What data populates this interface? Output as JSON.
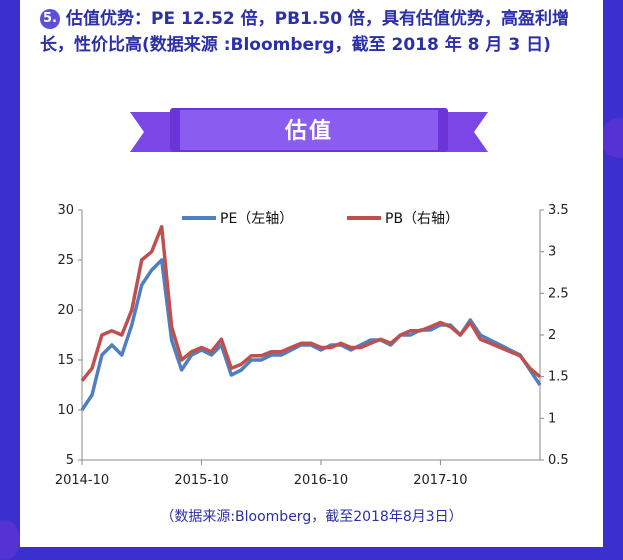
{
  "heading": {
    "number": "5.",
    "text": "估值优势：PE 12.52 倍，PB1.50 倍，具有估值优势，高盈利增长，性价比高(数据来源 :Bloomberg，截至 2018 年 8 月 3 日)"
  },
  "ribbon_title": "估值",
  "source_note": "（数据来源:Bloomberg，截至2018年8月3日）",
  "colors": {
    "pe": "#4f7fc0",
    "pb": "#c0504d",
    "background": "#3c2fd0",
    "accent": "#6a34d6"
  },
  "chart_data": {
    "type": "line",
    "x": [
      "2014-10",
      "2014-11",
      "2014-12",
      "2015-01",
      "2015-02",
      "2015-03",
      "2015-04",
      "2015-05",
      "2015-06",
      "2015-07",
      "2015-08",
      "2015-09",
      "2015-10",
      "2015-11",
      "2015-12",
      "2016-01",
      "2016-02",
      "2016-03",
      "2016-04",
      "2016-05",
      "2016-06",
      "2016-07",
      "2016-08",
      "2016-09",
      "2016-10",
      "2016-11",
      "2016-12",
      "2017-01",
      "2017-02",
      "2017-03",
      "2017-04",
      "2017-05",
      "2017-06",
      "2017-07",
      "2017-08",
      "2017-09",
      "2017-10",
      "2017-11",
      "2017-12",
      "2018-01",
      "2018-02",
      "2018-03",
      "2018-04",
      "2018-05",
      "2018-06",
      "2018-07",
      "2018-08"
    ],
    "x_ticks": [
      "2014-10",
      "2015-10",
      "2016-10",
      "2017-10"
    ],
    "series": [
      {
        "name": "PE（左轴）",
        "axis": "left",
        "values": [
          10.0,
          11.5,
          15.5,
          16.5,
          15.5,
          18.5,
          22.5,
          24.0,
          25.0,
          17.0,
          14.0,
          15.5,
          16.0,
          15.5,
          16.5,
          13.5,
          14.0,
          15.0,
          15.0,
          15.5,
          15.5,
          16.0,
          16.5,
          16.5,
          16.0,
          16.5,
          16.5,
          16.0,
          16.5,
          17.0,
          17.0,
          16.5,
          17.5,
          17.5,
          18.0,
          18.0,
          18.5,
          18.5,
          17.5,
          19.0,
          17.5,
          17.0,
          16.5,
          16.0,
          15.5,
          14.0,
          12.5
        ]
      },
      {
        "name": "PB（右轴）",
        "axis": "right",
        "values": [
          1.45,
          1.6,
          2.0,
          2.05,
          2.0,
          2.3,
          2.9,
          3.0,
          3.3,
          2.1,
          1.7,
          1.8,
          1.85,
          1.8,
          1.95,
          1.6,
          1.65,
          1.75,
          1.75,
          1.8,
          1.8,
          1.85,
          1.9,
          1.9,
          1.85,
          1.85,
          1.9,
          1.85,
          1.85,
          1.9,
          1.95,
          1.9,
          2.0,
          2.05,
          2.05,
          2.1,
          2.15,
          2.1,
          2.0,
          2.15,
          1.95,
          1.9,
          1.85,
          1.8,
          1.75,
          1.6,
          1.5
        ]
      }
    ],
    "ylim_left": [
      5,
      30
    ],
    "ylim_right": [
      0.5,
      3.5
    ],
    "yticks_left": [
      5,
      10,
      15,
      20,
      25,
      30
    ],
    "yticks_right": [
      0.5,
      1,
      1.5,
      2,
      2.5,
      3,
      3.5
    ],
    "legend": "top-center"
  }
}
